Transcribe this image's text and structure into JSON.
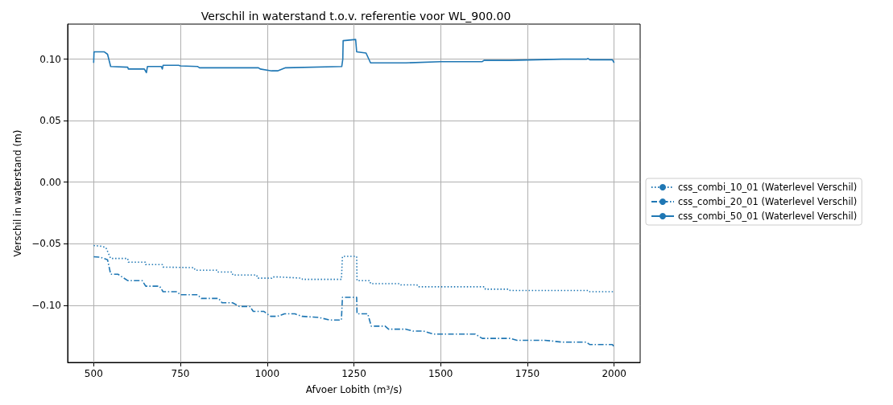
{
  "chart_data": {
    "type": "line",
    "title": "Verschil in waterstand t.o.v. referentie voor WL_900.00",
    "xlabel": "Afvoer Lobith (m³/s)",
    "ylabel": "Verschil in waterstand (m)",
    "xlim": [
      425,
      2075
    ],
    "xticks": [
      500,
      750,
      1000,
      1250,
      1500,
      1750,
      2000
    ],
    "ylim": [
      -0.1465,
      0.1285
    ],
    "yticks": [
      {
        "value": -0.1,
        "label": "−0.10"
      },
      {
        "value": -0.05,
        "label": "−0.05"
      },
      {
        "value": 0,
        "label": "0.00"
      },
      {
        "value": 0.05,
        "label": "0.05"
      },
      {
        "value": 0.1,
        "label": "0.10"
      }
    ],
    "grid": true,
    "legend": "right",
    "marker": "none",
    "series": [
      {
        "name": "css_combi_10_01 (Waterlevel Verschil)",
        "color": "#1f77b4",
        "line_style": "dotted",
        "x": [
          500,
          520,
          535,
          549,
          598,
          600,
          649,
          650,
          698,
          700,
          790,
          792,
          855,
          857,
          899,
          901,
          970,
          972,
          1013,
          1015,
          1030,
          1100,
          1102,
          1214,
          1217,
          1218,
          1258,
          1259,
          1296,
          1298,
          1383,
          1385,
          1432,
          1434,
          1627,
          1629,
          1698,
          1700,
          1926,
          1928,
          2000
        ],
        "values": [
          -0.0515,
          -0.052,
          -0.053,
          -0.062,
          -0.062,
          -0.065,
          -0.065,
          -0.067,
          -0.067,
          -0.069,
          -0.0695,
          -0.0715,
          -0.0715,
          -0.073,
          -0.073,
          -0.0755,
          -0.0755,
          -0.078,
          -0.078,
          -0.077,
          -0.077,
          -0.078,
          -0.079,
          -0.079,
          -0.0603,
          -0.0603,
          -0.0603,
          -0.08,
          -0.08,
          -0.0825,
          -0.0825,
          -0.0835,
          -0.0835,
          -0.085,
          -0.085,
          -0.087,
          -0.087,
          -0.088,
          -0.088,
          -0.089,
          -0.089
        ]
      },
      {
        "name": "css_combi_20_01 (Waterlevel Verschil)",
        "color": "#1f77b4",
        "line_style": "dashdot",
        "x": [
          500,
          520,
          540,
          549,
          570,
          598,
          640,
          650,
          690,
          700,
          740,
          750,
          800,
          810,
          860,
          870,
          900,
          920,
          950,
          960,
          990,
          1010,
          1030,
          1050,
          1080,
          1100,
          1150,
          1180,
          1214,
          1217,
          1218,
          1258,
          1259,
          1290,
          1300,
          1340,
          1350,
          1400,
          1420,
          1450,
          1480,
          1600,
          1620,
          1700,
          1720,
          1800,
          1850,
          1920,
          1930,
          1995,
          2000
        ],
        "values": [
          -0.0606,
          -0.061,
          -0.063,
          -0.0748,
          -0.0748,
          -0.08,
          -0.08,
          -0.0845,
          -0.0845,
          -0.089,
          -0.089,
          -0.0915,
          -0.0915,
          -0.0945,
          -0.0945,
          -0.098,
          -0.098,
          -0.101,
          -0.101,
          -0.105,
          -0.105,
          -0.109,
          -0.109,
          -0.107,
          -0.107,
          -0.109,
          -0.11,
          -0.112,
          -0.112,
          -0.0936,
          -0.0936,
          -0.0936,
          -0.107,
          -0.107,
          -0.117,
          -0.117,
          -0.1195,
          -0.1195,
          -0.121,
          -0.121,
          -0.1235,
          -0.1235,
          -0.127,
          -0.127,
          -0.1285,
          -0.1285,
          -0.13,
          -0.13,
          -0.132,
          -0.132,
          -0.134
        ]
      },
      {
        "name": "css_combi_50_01 (Waterlevel Verschil)",
        "color": "#1f77b4",
        "line_style": "solid",
        "x": [
          500,
          501,
          530,
          540,
          549,
          598,
          600,
          646,
          652,
          655,
          695,
          698,
          700,
          745,
          750,
          800,
          805,
          975,
          980,
          1013,
          1030,
          1053,
          1215,
          1218,
          1219,
          1255,
          1258,
          1285,
          1298,
          1400,
          1500,
          1620,
          1625,
          1700,
          1850,
          1920,
          1925,
          1930,
          1995,
          2000
        ],
        "values": [
          0.097,
          0.106,
          0.106,
          0.104,
          0.094,
          0.0935,
          0.092,
          0.092,
          0.089,
          0.094,
          0.094,
          0.092,
          0.095,
          0.095,
          0.0945,
          0.094,
          0.093,
          0.093,
          0.092,
          0.0905,
          0.0905,
          0.093,
          0.094,
          0.1,
          0.115,
          0.116,
          0.106,
          0.105,
          0.097,
          0.097,
          0.098,
          0.098,
          0.099,
          0.099,
          0.1,
          0.1,
          0.1005,
          0.0995,
          0.0995,
          0.097
        ]
      }
    ]
  }
}
